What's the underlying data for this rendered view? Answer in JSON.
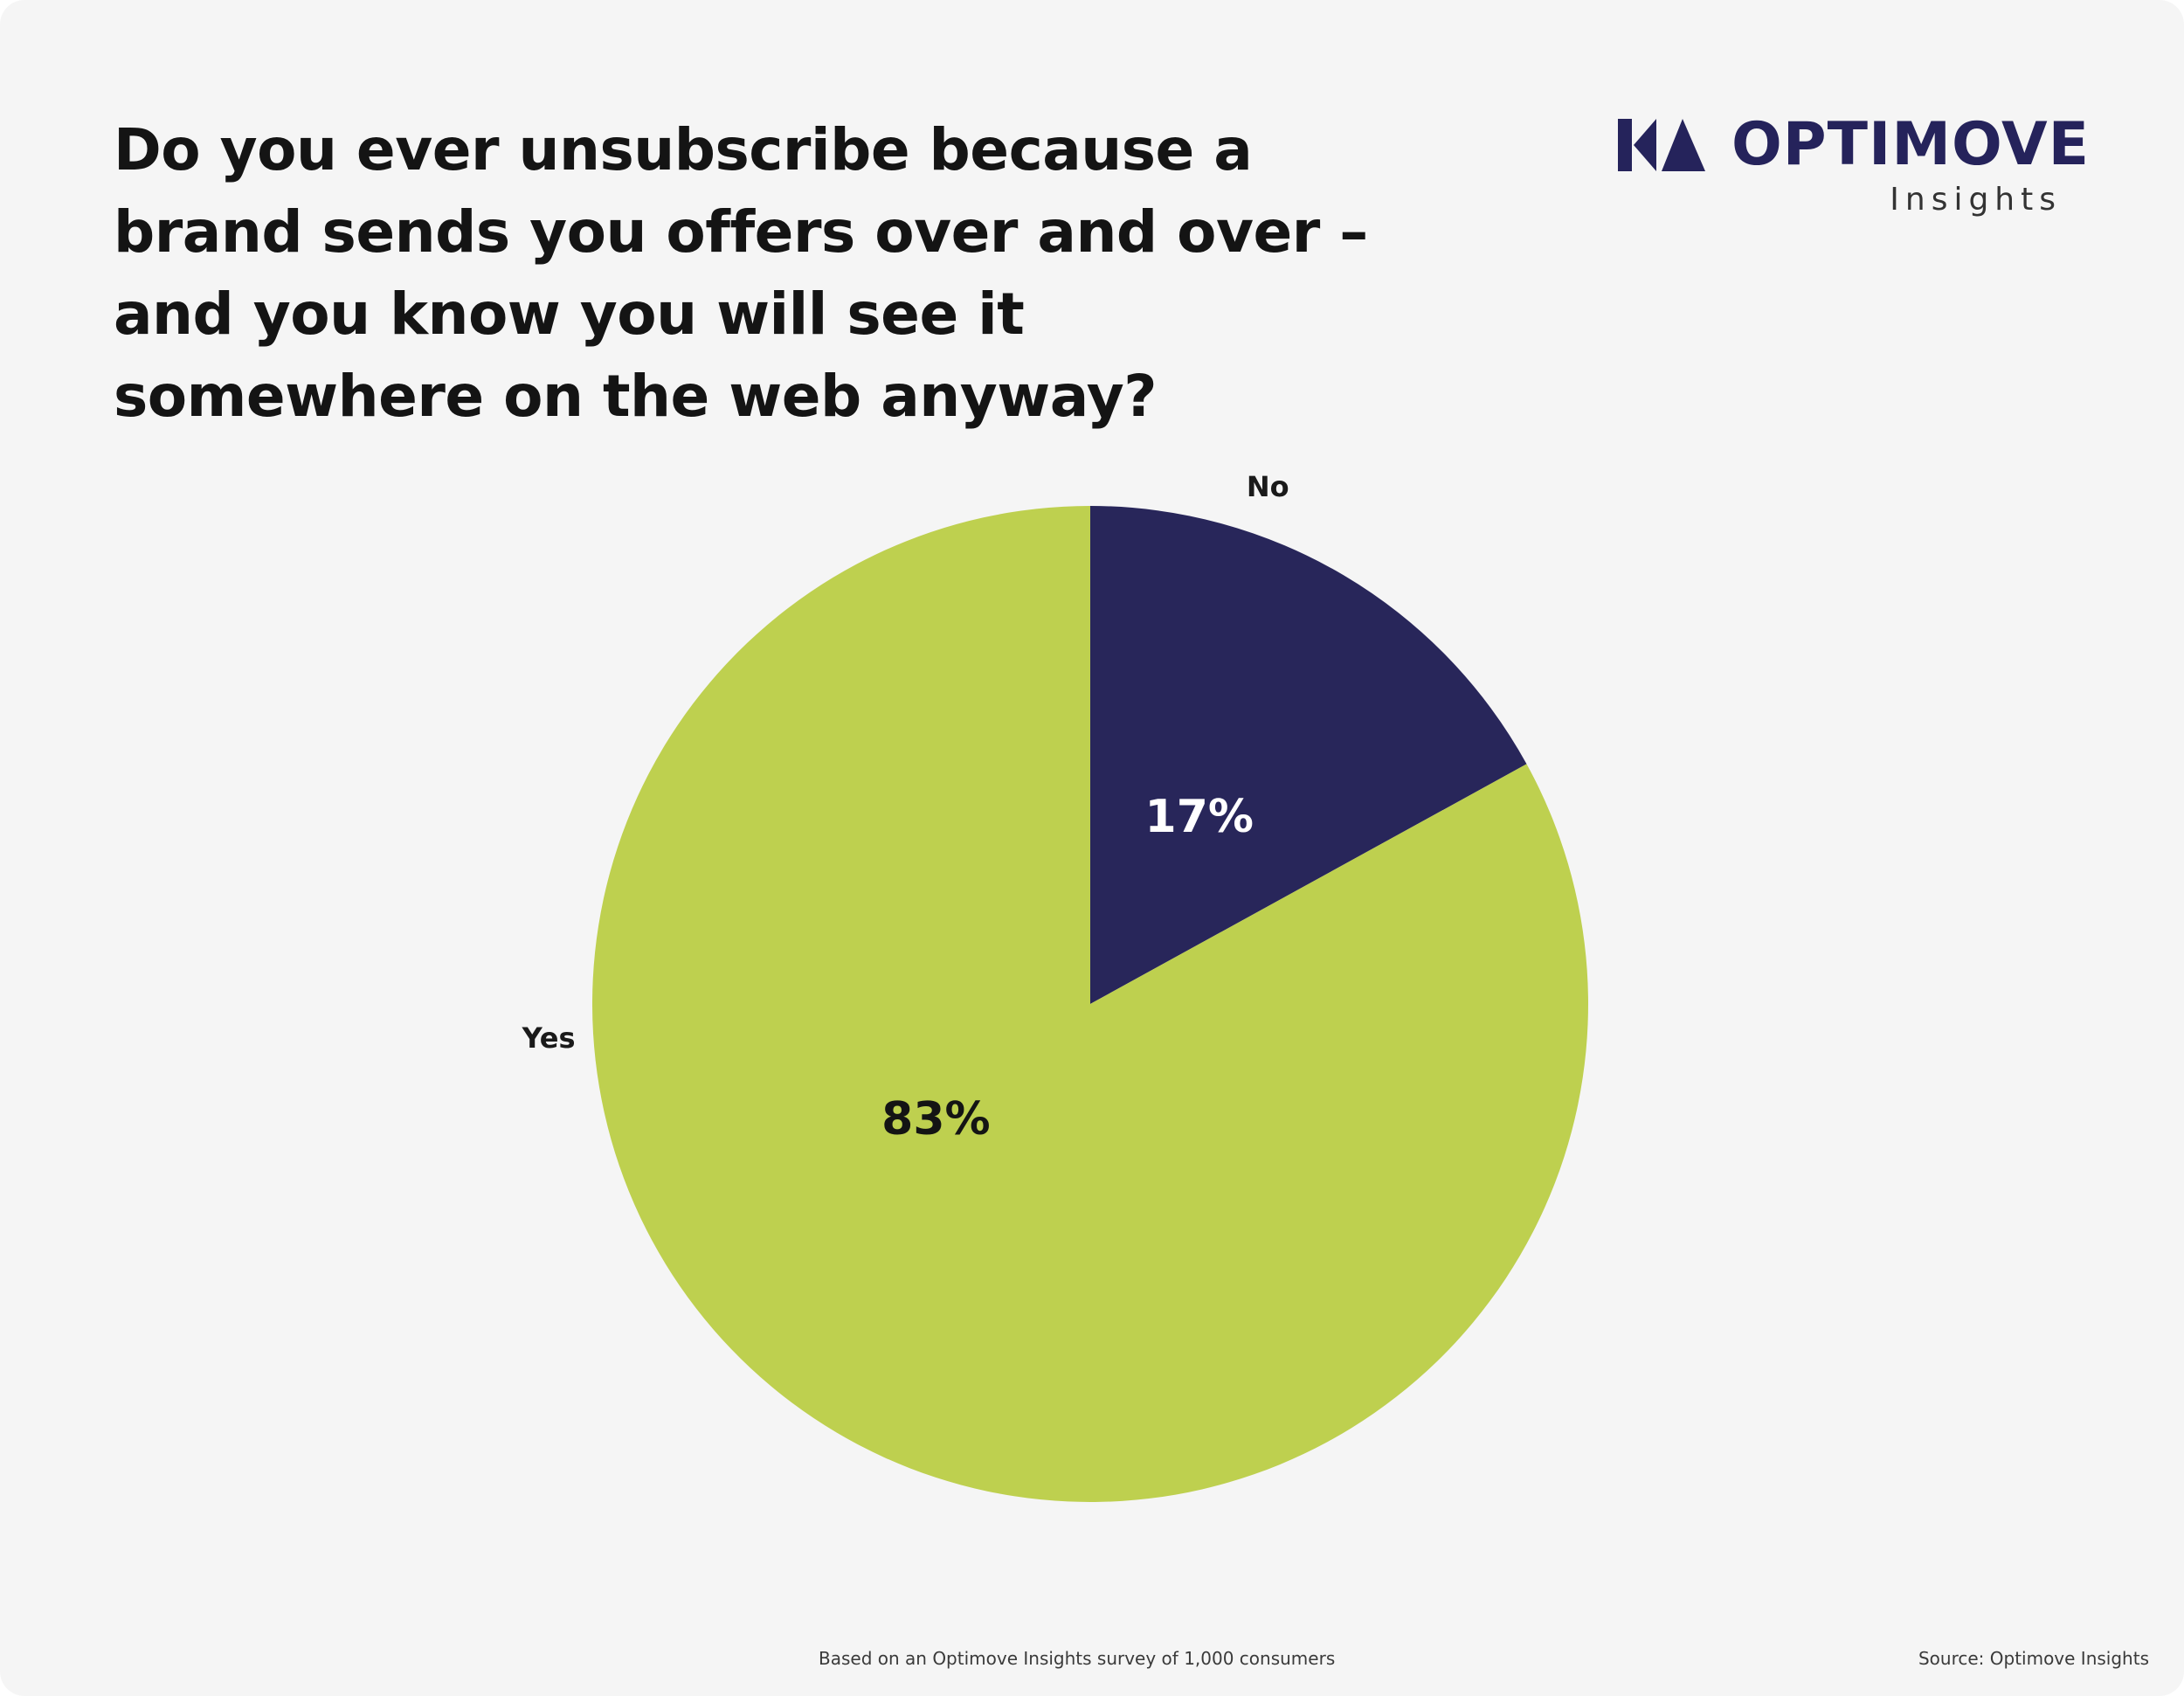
{
  "title": "Do you ever unsubscribe because a brand sends you offers over and over – and you know you will see it somewhere on the web anyway?",
  "logo": {
    "name": "OPTIMOVE",
    "subtitle": "Insights",
    "color": "#25235b"
  },
  "chart_data": {
    "type": "pie",
    "title": "Do you ever unsubscribe because a brand sends you offers over and over – and you know you will see it somewhere on the web anyway?",
    "slices": [
      {
        "label": "No",
        "value": 17,
        "display": "17%",
        "color": "#28265a",
        "text_color": "#ffffff"
      },
      {
        "label": "Yes",
        "value": 83,
        "display": "83%",
        "color": "#bed04f",
        "text_color": "#141414"
      }
    ],
    "start_angle_deg": 0,
    "direction": "clockwise",
    "legend": "none"
  },
  "footer": {
    "left": "Based on an Optimove Insights survey of 1,000 consumers",
    "right": "Source: Optimove Insights"
  }
}
